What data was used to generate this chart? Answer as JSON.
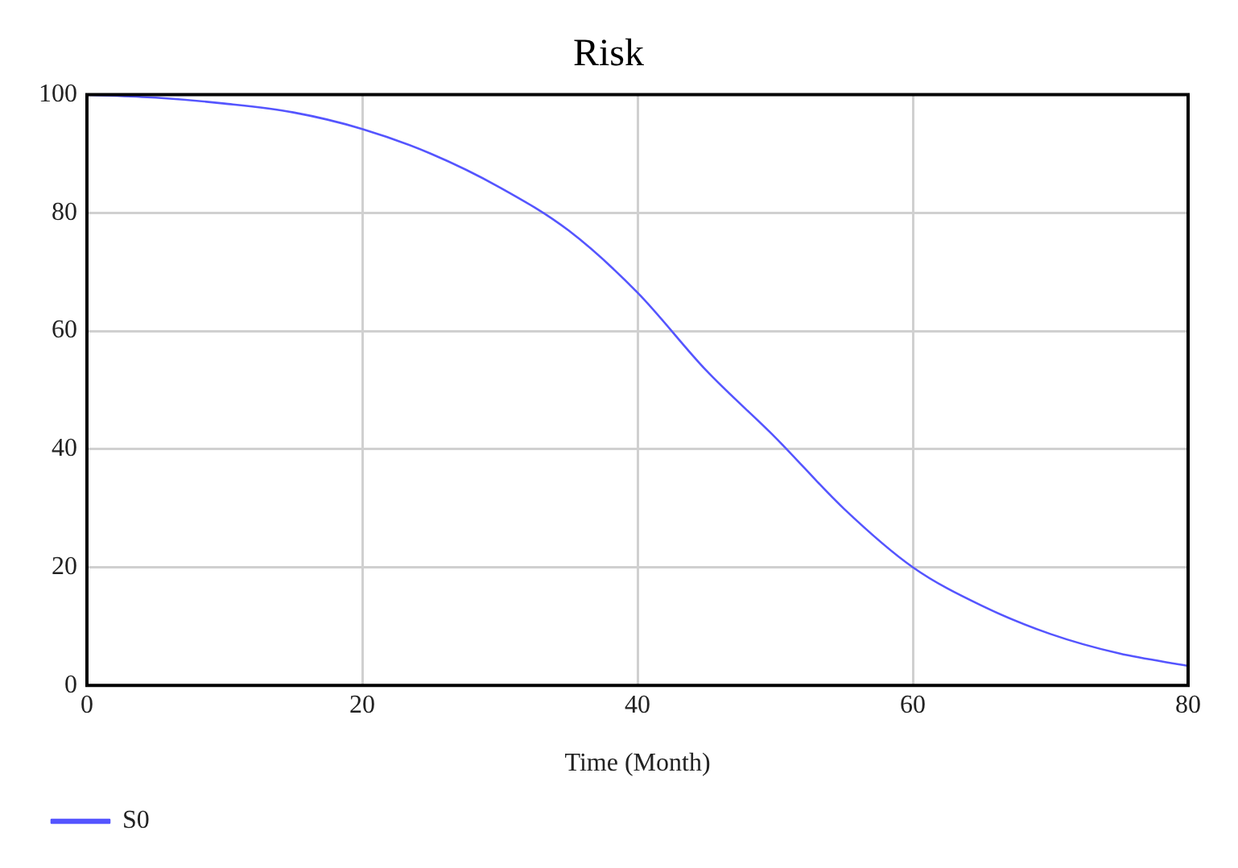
{
  "chart_data": {
    "type": "line",
    "title": "Risk",
    "xlabel": "Time (Month)",
    "x": [
      0,
      5,
      10,
      15,
      20,
      25,
      30,
      35,
      40,
      45,
      50,
      55,
      60,
      65,
      70,
      75,
      80
    ],
    "series": [
      {
        "name": "S0",
        "color": "#5555ff",
        "values": [
          100,
          99.5,
          98.5,
          97,
          94.2,
          90,
          84.3,
          77,
          66.5,
          53.3,
          42,
          29.9,
          20,
          13.5,
          8.7,
          5.4,
          3.3
        ]
      }
    ],
    "xlim": [
      0,
      80
    ],
    "xticks": [
      0,
      20,
      40,
      60,
      80
    ],
    "ylim": [
      0,
      100
    ],
    "yticks": [
      0,
      20,
      40,
      60,
      80,
      100
    ],
    "grid": true,
    "legend": "bottom left",
    "marker": "none",
    "line_style": "solid"
  }
}
